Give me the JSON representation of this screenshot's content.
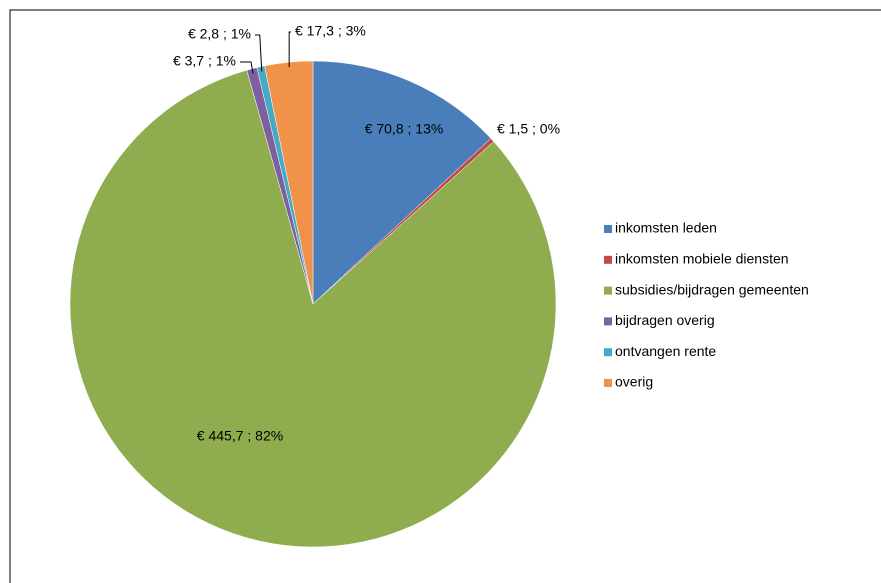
{
  "chart_data": {
    "type": "pie",
    "categories": [
      "inkomsten leden",
      "inkomsten mobiele diensten",
      "subsidies/bijdragen gemeenten",
      "bijdragen overig",
      "ontvangen rente",
      "overig"
    ],
    "values": [
      70.8,
      1.5,
      445.7,
      3.7,
      2.8,
      17.3
    ],
    "value_labels": [
      "€ 70,8 ; 13%",
      "€ 1,5 ; 0%",
      "€ 445,7 ; 82%",
      "€ 3,7 ; 1%",
      "€ 2,8 ; 1%",
      "€ 17,3 ; 3%"
    ],
    "colors": [
      "#4a7ebb",
      "#be4b48",
      "#8fad4f",
      "#7d60a0",
      "#46aac5",
      "#f0924a"
    ],
    "legend": "right"
  }
}
